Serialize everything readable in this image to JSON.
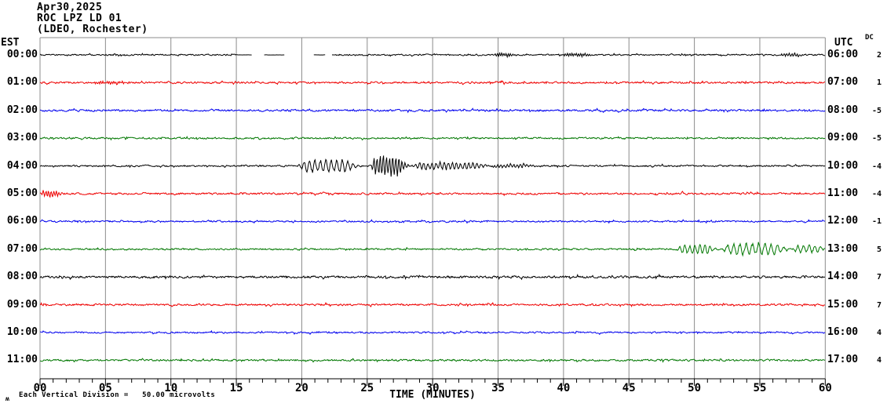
{
  "header": {
    "date": "Apr30,2025",
    "station": "ROC LPZ LD 01",
    "location": "(LDEO, Rochester)"
  },
  "axes": {
    "left_label": "EST",
    "right_label": "UTC",
    "dc_label": "DC",
    "x_label": "TIME (MINUTES)",
    "x_ticks": [
      "00",
      "05",
      "10",
      "15",
      "20",
      "25",
      "30",
      "35",
      "40",
      "45",
      "50",
      "55",
      "60"
    ],
    "x_minor_per_major": 5
  },
  "footer": {
    "scale_glyph": "ʍ",
    "scale_text": "Each Vertical Division =   50.00 microvolts"
  },
  "colors": {
    "black": "#000000",
    "red": "#ee0000",
    "blue": "#0000ee",
    "green": "#007700",
    "grid": "#8c8c8c",
    "axis": "#000000"
  },
  "chart_data": {
    "type": "line",
    "subtype": "helicorder-seismogram",
    "title": "ROC LPZ LD 01 — Apr30,2025 (LDEO, Rochester)",
    "xlabel": "TIME (MINUTES)",
    "x_range": [
      0,
      60
    ],
    "x_tick_values": [
      0,
      5,
      10,
      15,
      20,
      25,
      30,
      35,
      40,
      45,
      50,
      55,
      60
    ],
    "minutes_per_row": 60,
    "vertical_division_microvolts": 50.0,
    "grid": true,
    "rows": [
      {
        "est": "00:00",
        "utc": "06:00",
        "dc": "2",
        "color": "black",
        "base": 1.3,
        "quiet": [
          [
            15.0,
            22.6,
            0.12
          ]
        ],
        "gaps": [
          [
            16.2,
            17.1
          ],
          [
            18.7,
            20.9
          ],
          [
            21.8,
            22.3
          ]
        ],
        "events": [
          {
            "s": 34.6,
            "e": 36.2,
            "a": 2.0,
            "f": 6
          },
          {
            "s": 39.8,
            "e": 42.3,
            "a": 1.8,
            "f": 6
          },
          {
            "s": 56.5,
            "e": 58.5,
            "a": 1.6,
            "f": 5
          }
        ]
      },
      {
        "est": "01:00",
        "utc": "07:00",
        "dc": "1",
        "color": "red",
        "base": 1.7,
        "events": [
          {
            "s": 4.0,
            "e": 7.0,
            "a": 1.2,
            "f": 6
          }
        ]
      },
      {
        "est": "02:00",
        "utc": "08:00",
        "dc": "-5",
        "color": "blue",
        "base": 1.8,
        "events": []
      },
      {
        "est": "03:00",
        "utc": "09:00",
        "dc": "-5",
        "color": "green",
        "base": 1.6,
        "events": []
      },
      {
        "est": "04:00",
        "utc": "10:00",
        "dc": "-4",
        "color": "black",
        "base": 1.5,
        "events": [
          {
            "s": 19.6,
            "e": 24.6,
            "a": 7.0,
            "f": 2.4
          },
          {
            "s": 25.2,
            "e": 28.2,
            "a": 11.0,
            "f": 4.2
          },
          {
            "s": 28.2,
            "e": 34.5,
            "a": 4.0,
            "f": 3.2
          },
          {
            "s": 34.5,
            "e": 38.0,
            "a": 2.0,
            "f": 4.0
          }
        ]
      },
      {
        "est": "05:00",
        "utc": "11:00",
        "dc": "-4",
        "color": "red",
        "base": 1.7,
        "events": [
          {
            "s": 0.0,
            "e": 1.8,
            "a": 3.5,
            "f": 5.0
          }
        ]
      },
      {
        "est": "06:00",
        "utc": "12:00",
        "dc": "-1",
        "color": "blue",
        "base": 1.5,
        "events": []
      },
      {
        "est": "07:00",
        "utc": "13:00",
        "dc": "5",
        "color": "green",
        "base": 1.5,
        "events": [
          {
            "s": 48.6,
            "e": 52.0,
            "a": 4.5,
            "f": 2.6
          },
          {
            "s": 52.0,
            "e": 57.5,
            "a": 6.5,
            "f": 2.1
          },
          {
            "s": 57.5,
            "e": 60.0,
            "a": 4.0,
            "f": 2.3
          }
        ]
      },
      {
        "est": "08:00",
        "utc": "14:00",
        "dc": "7",
        "color": "black",
        "base": 2.0,
        "events": []
      },
      {
        "est": "09:00",
        "utc": "15:00",
        "dc": "7",
        "color": "red",
        "base": 1.7,
        "events": []
      },
      {
        "est": "10:00",
        "utc": "16:00",
        "dc": "4",
        "color": "blue",
        "base": 1.5,
        "events": []
      },
      {
        "est": "11:00",
        "utc": "17:00",
        "dc": "4",
        "color": "green",
        "base": 1.7,
        "events": []
      }
    ],
    "annotations": [
      "Seismic event on 04:00 EST (10:00 UTC) row, minutes ~20-34, peak amplitude near minute 26",
      "Seismic event on 07:00 EST (13:00 UTC) row, minutes ~49-60",
      "Data gaps on 00:00 EST row between minutes ~16-22"
    ]
  }
}
